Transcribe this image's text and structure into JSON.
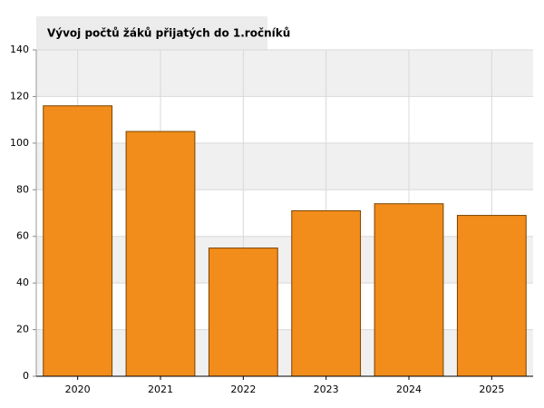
{
  "chart_data": {
    "type": "bar",
    "title": "Vývoj počtů žáků přijatých do 1.ročníků",
    "categories": [
      "2020",
      "2021",
      "2022",
      "2023",
      "2024",
      "2025"
    ],
    "values": [
      116,
      105,
      55,
      71,
      74,
      69
    ],
    "color": "#f28c1a",
    "ylim": [
      0,
      140
    ],
    "yticks": [
      0,
      20,
      40,
      60,
      80,
      100,
      120,
      140
    ],
    "grid": true
  }
}
